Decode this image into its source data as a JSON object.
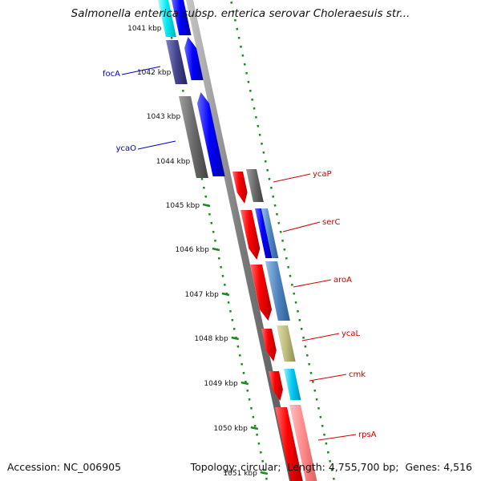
{
  "title": "Salmonella enterica subsp. enterica serovar Choleraesuis str...",
  "accession_label": "Accession:",
  "accession": "NC_006905",
  "topology_label": "Topology:",
  "topology": "circular",
  "length_label": "Length:",
  "length": "4,755,700 bp",
  "genes_label": "Genes:",
  "genes": "4,516",
  "colors": {
    "backbone": "#8a8a8a",
    "tick": "#1a8a1a",
    "gene_label_forward": "#0000cc",
    "gene_label_reverse": "#cc0000"
  },
  "ticks": [
    "1041 kbp",
    "1042 kbp",
    "1043 kbp",
    "1044 kbp",
    "1045 kbp",
    "1046 kbp",
    "1047 kbp",
    "1048 kbp",
    "1049 kbp",
    "1050 kbp",
    "1051 kbp"
  ],
  "genes_forward": [
    {
      "name": "focA",
      "color": "#3a3a8a"
    },
    {
      "name": "ycaO",
      "color": "#0000e0"
    }
  ],
  "genes_reverse": [
    {
      "name": "ycaP",
      "color": "#e00000"
    },
    {
      "name": "serC",
      "color": "#e00000"
    },
    {
      "name": "aroA",
      "color": "#e00000"
    },
    {
      "name": "ycaL",
      "color": "#e00000"
    },
    {
      "name": "cmk",
      "color": "#e00000"
    },
    {
      "name": "rpsA",
      "color": "#e00000"
    }
  ]
}
